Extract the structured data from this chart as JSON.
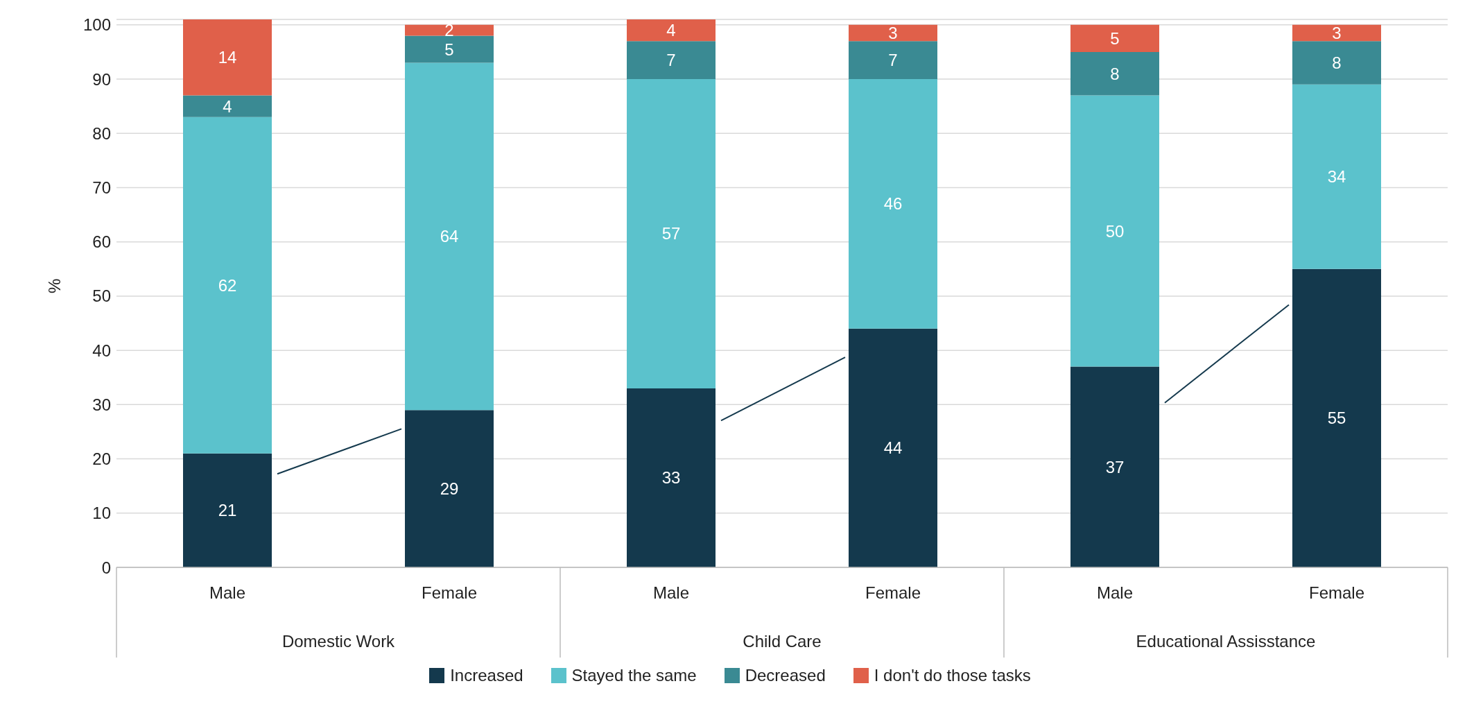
{
  "chart_data": {
    "type": "bar",
    "stacked": true,
    "ylabel": "%",
    "categories": [
      "Male",
      "Female",
      "Male",
      "Female",
      "Male",
      "Female"
    ],
    "annotations": [
      "Domestic Work",
      "Child Care",
      "Educational Assisstance"
    ],
    "series": [
      {
        "name": "Increased",
        "color": "#14394d",
        "values": [
          21,
          29,
          33,
          44,
          37,
          55
        ]
      },
      {
        "name": "Stayed the same",
        "color": "#5bc2cc",
        "values": [
          62,
          64,
          57,
          46,
          50,
          34
        ]
      },
      {
        "name": "Decreased",
        "color": "#3a8a93",
        "values": [
          4,
          5,
          7,
          7,
          8,
          8
        ]
      },
      {
        "name": "I don't do those tasks",
        "color": "#e0604a",
        "values": [
          14,
          2,
          4,
          3,
          5,
          3
        ]
      }
    ],
    "ylim": [
      0,
      101
    ],
    "yticks": [
      0,
      10,
      20,
      30,
      40,
      50,
      60,
      70,
      80,
      90,
      100
    ],
    "grid": "y",
    "legend": "bottom",
    "data_labels": true
  }
}
